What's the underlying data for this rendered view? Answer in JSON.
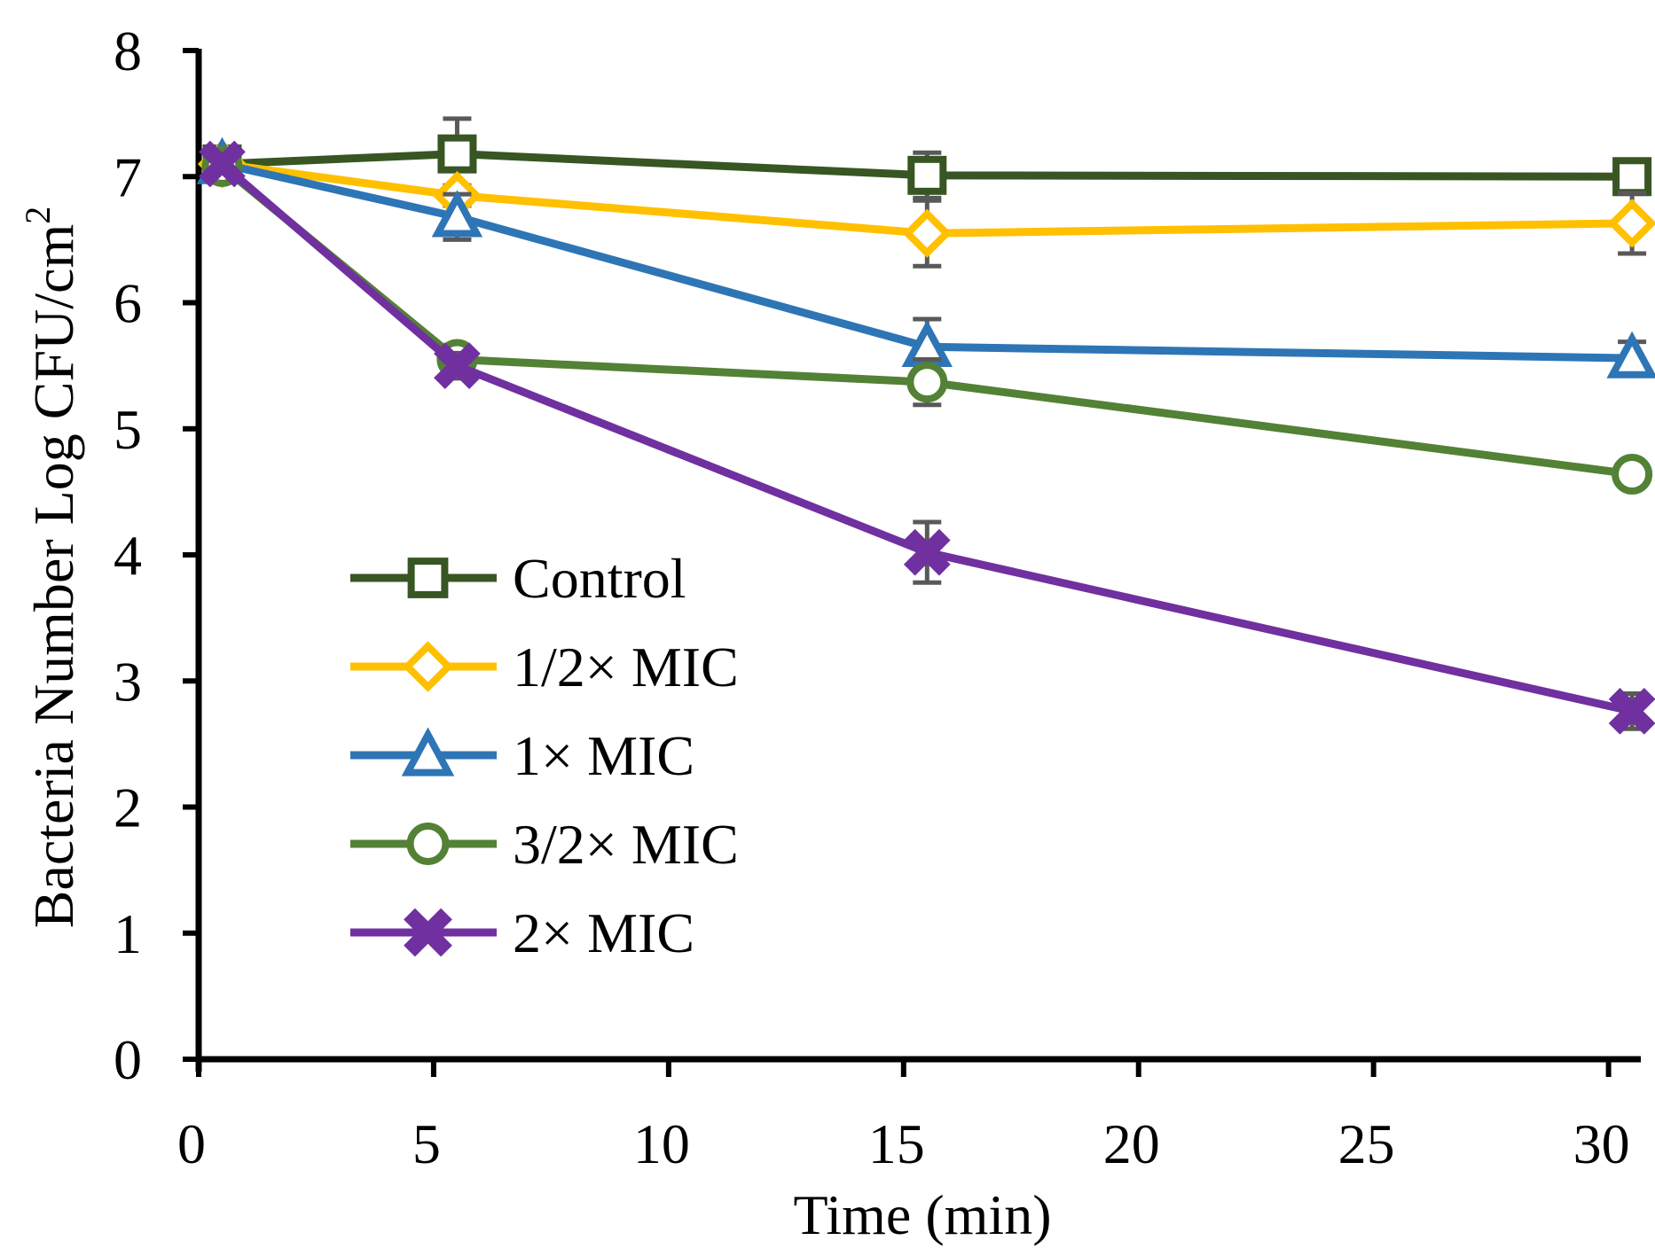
{
  "chart_data": {
    "type": "line",
    "title": "",
    "xlabel": "Time (min)",
    "ylabel": "Bacteria Number Log CFU/cm",
    "ylabel_sup": "2",
    "xlim": [
      0,
      30.8
    ],
    "ylim": [
      0,
      8
    ],
    "xticks": [
      0,
      5,
      10,
      15,
      20,
      25,
      30
    ],
    "yticks": [
      0,
      1,
      2,
      3,
      4,
      5,
      6,
      7,
      8
    ],
    "grid": false,
    "legend": "center-left",
    "x": [
      0.5,
      5.5,
      15.5,
      30.5
    ],
    "series": [
      {
        "name": "Control",
        "color": "#375623",
        "marker": "square",
        "values": [
          7.1,
          7.18,
          7.01,
          7.0
        ],
        "errors": [
          0.05,
          0.28,
          0.18,
          0.05
        ]
      },
      {
        "name": "1/2× MIC",
        "color": "#FFC000",
        "marker": "diamond",
        "values": [
          7.1,
          6.85,
          6.55,
          6.63
        ],
        "errors": [
          0.05,
          0.08,
          0.26,
          0.24
        ]
      },
      {
        "name": "1× MIC",
        "color": "#2E75B6",
        "marker": "triangle",
        "values": [
          7.1,
          6.68,
          5.65,
          5.56
        ],
        "errors": [
          0.05,
          0.18,
          0.22,
          0.13
        ]
      },
      {
        "name": "3/2× MIC",
        "color": "#538135",
        "marker": "circle",
        "values": [
          7.08,
          5.55,
          5.37,
          4.64
        ],
        "errors": [
          0.05,
          0.08,
          0.18,
          0.05
        ]
      },
      {
        "name": "2× MIC",
        "color": "#7030A0",
        "marker": "x",
        "values": [
          7.1,
          5.5,
          4.02,
          2.76
        ],
        "errors": [
          0.05,
          0.1,
          0.24,
          0.14
        ]
      }
    ]
  }
}
